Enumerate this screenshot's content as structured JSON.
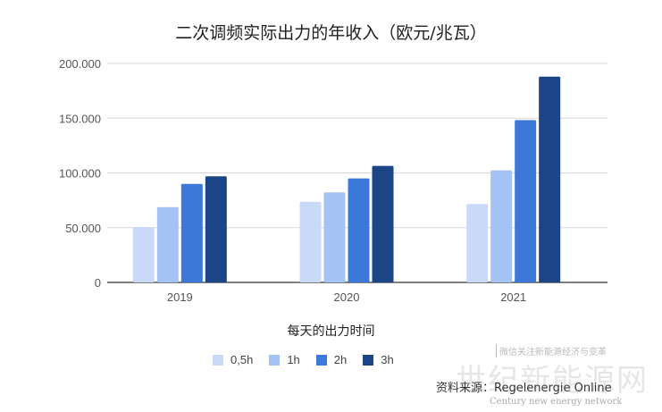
{
  "chart_data": {
    "type": "bar",
    "title": "二次调频实际出力的年收入（欧元/兆瓦）",
    "xlabel": "每天的出力时间",
    "ylabel": "",
    "categories": [
      "2019",
      "2020",
      "2021"
    ],
    "series": [
      {
        "name": "0,5h",
        "color": "#c9daf8",
        "values": [
          50500,
          73700,
          71600
        ]
      },
      {
        "name": "1h",
        "color": "#a4c2f4",
        "values": [
          68800,
          82200,
          102300
        ]
      },
      {
        "name": "2h",
        "color": "#3c78d8",
        "values": [
          90000,
          95000,
          148300
        ]
      },
      {
        "name": "3h",
        "color": "#1c4587",
        "values": [
          96900,
          106400,
          188000
        ]
      }
    ],
    "ylim": [
      0,
      200000
    ],
    "yticks": [
      0,
      50000,
      100000,
      150000,
      200000
    ],
    "ytick_labels": [
      "0",
      "50.000",
      "100.000",
      "150.000",
      "200.000"
    ],
    "grid": true,
    "legend_position": "bottom"
  },
  "source": "资料来源：Regelenergie Online",
  "watermark": {
    "top": "微信关注新能源经济与变革",
    "main": "世纪新能源网",
    "sub": "Century new energy network"
  }
}
